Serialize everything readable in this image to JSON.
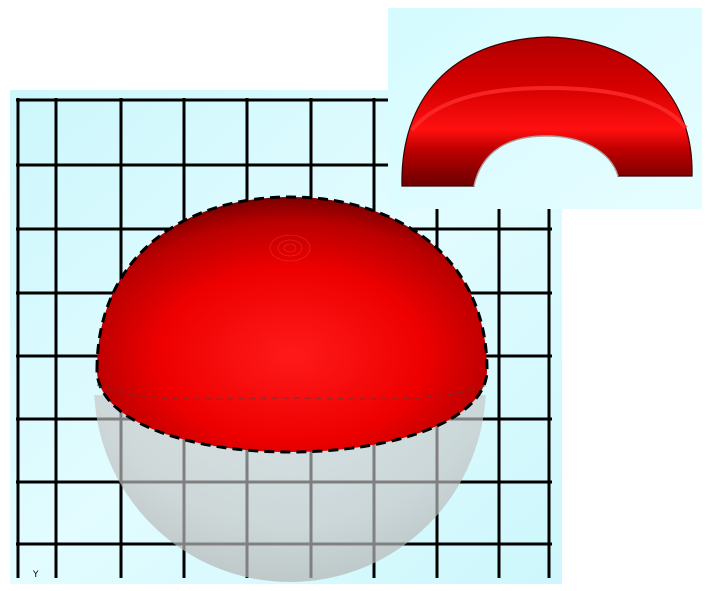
{
  "scene": {
    "background_color": "#d8fbff",
    "sphere_color": "#ff0000",
    "grid_color": "#000000",
    "grid_columns": 8,
    "grid_rows": 8
  },
  "axis_label": "Y",
  "inset": {
    "background_color": "#d8fbff",
    "shape": "half-ring"
  }
}
